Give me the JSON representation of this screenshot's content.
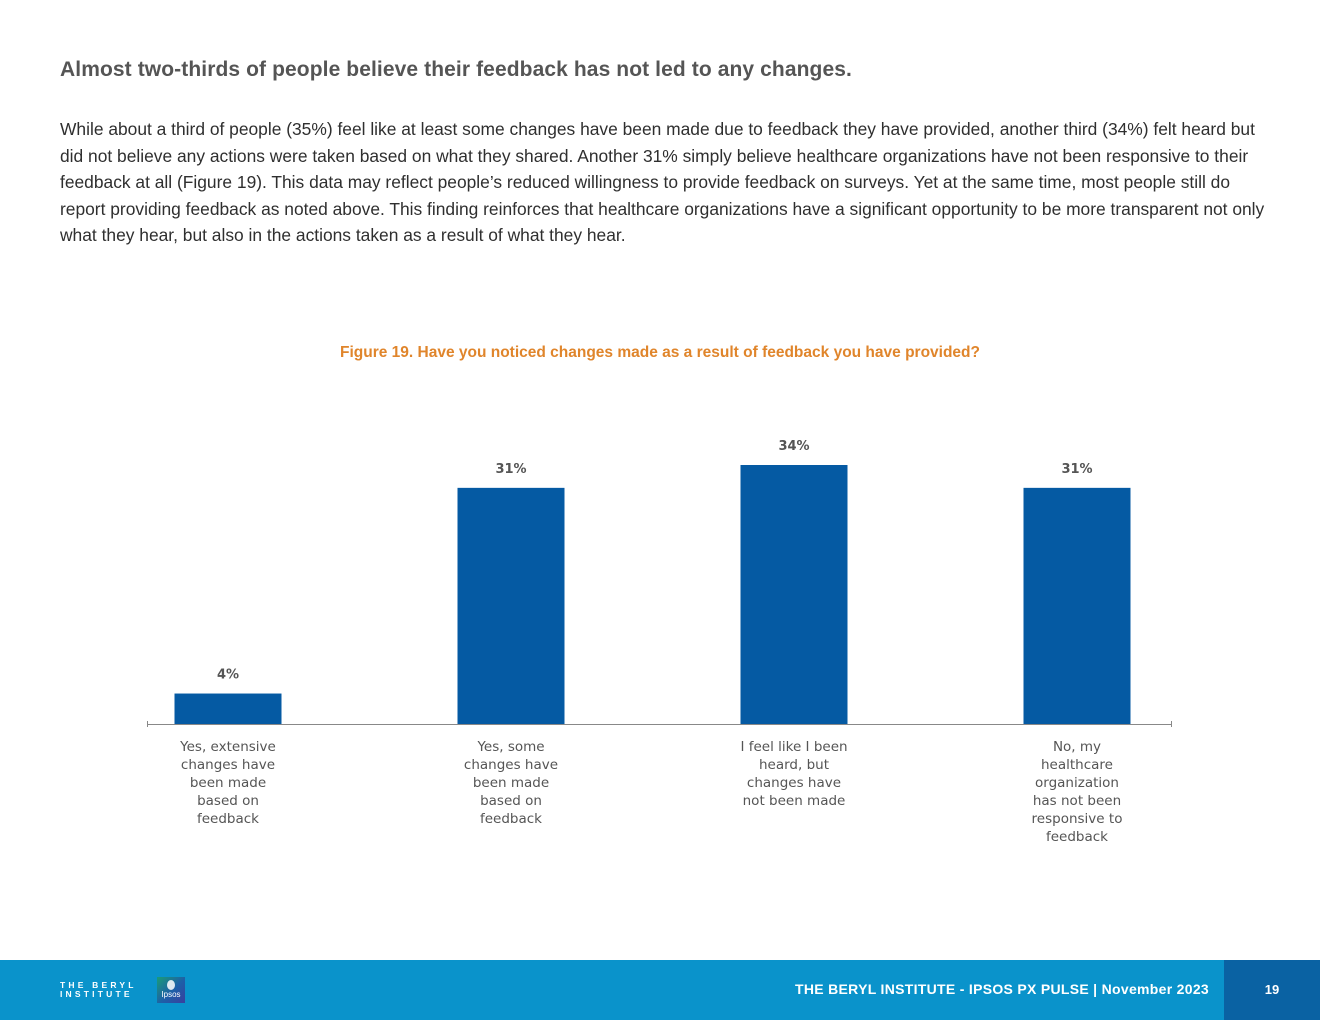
{
  "page": {
    "heading": "Almost two-thirds of people believe their feedback has not led to any changes.",
    "body": "While about a third of people (35%) feel like at least some changes have been made due to feedback they have provided, another third (34%) felt heard but did not believe any actions were taken based on what they shared. Another 31% simply believe healthcare organizations have not been responsive to their feedback at all (Figure 19). This data may reflect people’s reduced willingness to provide feedback on surveys. Yet at the same time, most people still do report providing feedback as noted above. This finding reinforces that healthcare organizations have a significant opportunity to be more transparent not only what they hear, but also in the actions taken as a result of what they hear."
  },
  "chart_data": {
    "type": "bar",
    "title": "Figure 19. Have you noticed changes made as a result of feedback you have provided?",
    "categories": [
      "Yes, extensive changes have been made based on feedback",
      "Yes, some changes have been made based on feedback",
      "I feel like I been heard, but changes have not been made",
      "No, my healthcare organization has not been responsive to feedback"
    ],
    "category_lines": [
      [
        "Yes, extensive",
        "changes have",
        "been made",
        "based on",
        "feedback"
      ],
      [
        "Yes, some",
        "changes have",
        "been made",
        "based on",
        "feedback"
      ],
      [
        "I feel like I been",
        "heard, but",
        "changes have",
        "not been made"
      ],
      [
        "No, my",
        "healthcare",
        "organization",
        "has not been",
        "responsive to",
        "feedback"
      ]
    ],
    "values": [
      4,
      31,
      34,
      31
    ],
    "value_labels": [
      "4%",
      "31%",
      "34%",
      "31%"
    ],
    "ylim": [
      0,
      34
    ],
    "grid": false,
    "legend": "none",
    "bar_color": "#055aa3",
    "label_color": "#e0852b"
  },
  "footer": {
    "publication": "THE BERYL INSTITUTE - IPSOS PX PULSE | November 2023",
    "page_number": "19",
    "logo_beryl_line1": "THE BERYL",
    "logo_beryl_line2": "INSTITUTE",
    "logo_ipsos": "Ipsos",
    "bar_color": "#0a93cb",
    "page_box_color": "#0a62a3"
  }
}
